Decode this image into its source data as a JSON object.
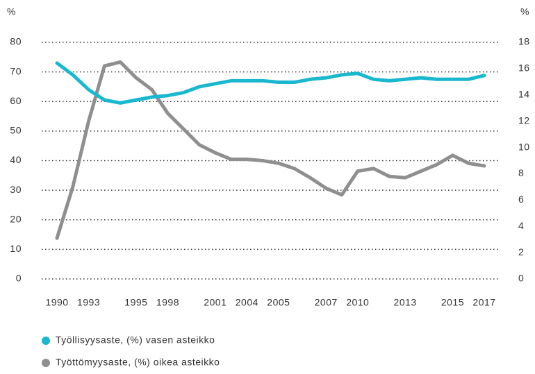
{
  "chart_data": {
    "type": "line",
    "ylabel": "%",
    "y2label": "%",
    "categories": [
      "1990",
      null,
      "1993",
      null,
      null,
      "1995",
      null,
      "1998",
      null,
      null,
      "2001",
      null,
      "2004",
      null,
      "2005",
      null,
      null,
      "2007",
      null,
      "2010",
      null,
      null,
      "2013",
      null,
      null,
      "2015",
      null,
      "2017"
    ],
    "series": [
      {
        "name": "Työllisyysaste, (%) vasen asteikko",
        "color": "#1ab8cf",
        "axis": "y",
        "values": [
          73,
          69,
          64,
          60.5,
          59.5,
          60.5,
          61.5,
          62,
          63,
          65,
          66,
          67,
          67,
          67,
          66.5,
          66.5,
          67.5,
          68,
          69,
          69.5,
          67.5,
          67,
          67.5,
          68,
          67.5,
          67.5,
          67.5,
          68.8
        ]
      },
      {
        "name": "Työttömyysaste, (%) oikea asteikko",
        "color": "#8f8f90",
        "axis": "y2",
        "values": [
          3.1,
          7.0,
          12.0,
          16.2,
          16.5,
          15.3,
          14.4,
          12.6,
          11.4,
          10.2,
          9.6,
          9.1,
          9.1,
          9.0,
          8.8,
          8.4,
          7.7,
          6.9,
          6.4,
          8.2,
          8.4,
          7.8,
          7.7,
          8.2,
          8.7,
          9.4,
          8.8,
          8.6
        ]
      }
    ],
    "ylim": [
      0,
      80
    ],
    "yticks": [
      0,
      10,
      20,
      30,
      40,
      50,
      60,
      70,
      80
    ],
    "y2lim": [
      0,
      18
    ],
    "y2ticks": [
      0,
      2,
      4,
      6,
      8,
      10,
      12,
      14,
      16,
      18
    ],
    "grid": true,
    "legend": "bottom-left"
  }
}
